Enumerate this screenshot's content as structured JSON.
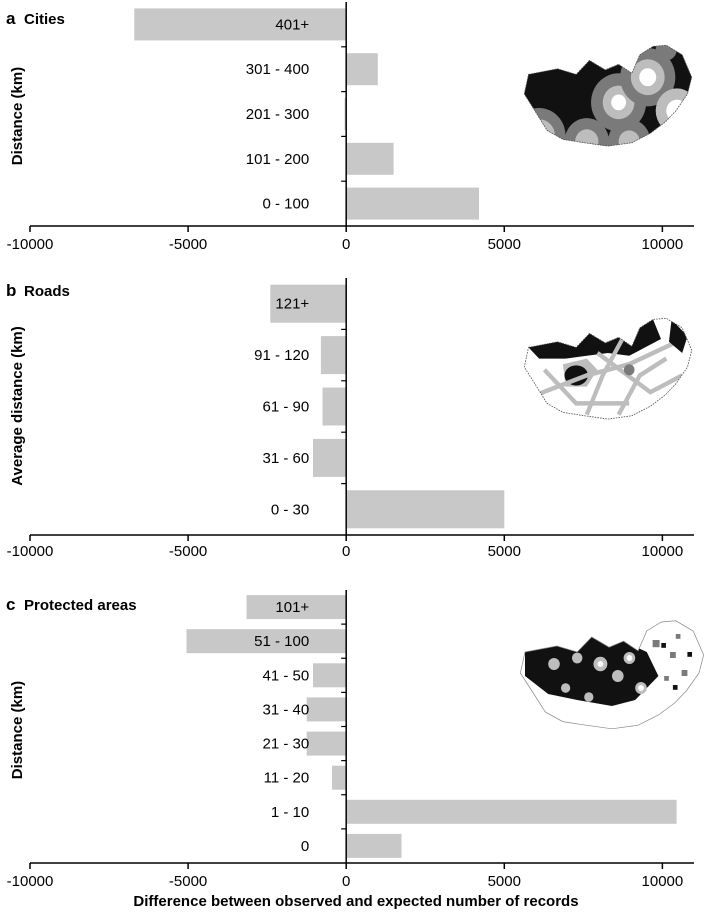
{
  "figure": {
    "xlabel": "Difference between observed and expected number of records",
    "bar_color": "#c8c8c8",
    "map_colors": [
      "#ffffff",
      "#bdbdbd",
      "#7a7a7a",
      "#111111"
    ]
  },
  "chart_data": [
    {
      "type": "bar",
      "orientation": "horizontal",
      "panel": "a",
      "title": "Cities",
      "ylabel": "Distance (km)",
      "categories": [
        "401+",
        "301 - 400",
        "201 - 300",
        "101 - 200",
        "0 - 100"
      ],
      "values": [
        -6700,
        1000,
        -50,
        1500,
        4200
      ],
      "xlim": [
        -10000,
        11000
      ],
      "xticks": [
        -10000,
        -5000,
        0,
        5000,
        10000
      ],
      "xtick_labels": [
        "-10000",
        "-5000",
        "0",
        "5000",
        "10000"
      ],
      "grid": false
    },
    {
      "type": "bar",
      "orientation": "horizontal",
      "panel": "b",
      "title": "Roads",
      "ylabel": "Average distance (km)",
      "categories": [
        "121+",
        "91 - 120",
        "61 - 90",
        "31 - 60",
        "0 - 30"
      ],
      "values": [
        -2400,
        -800,
        -750,
        -1050,
        5000
      ],
      "xlim": [
        -10000,
        11000
      ],
      "xticks": [
        -10000,
        -5000,
        0,
        5000,
        10000
      ],
      "xtick_labels": [
        "-10000",
        "-5000",
        "0",
        "5000",
        "10000"
      ],
      "grid": false
    },
    {
      "type": "bar",
      "orientation": "horizontal",
      "panel": "c",
      "title": "Protected areas",
      "ylabel": "Distance (km)",
      "categories": [
        "101+",
        "51 - 100",
        "41 - 50",
        "31 - 40",
        "21 - 30",
        "11 - 20",
        "1 - 10",
        "0"
      ],
      "values": [
        -3150,
        -5050,
        -1050,
        -1250,
        -1250,
        -450,
        10450,
        1750
      ],
      "xlim": [
        -10000,
        11000
      ],
      "xticks": [
        -10000,
        -5000,
        0,
        5000,
        10000
      ],
      "xtick_labels": [
        "-10000",
        "-5000",
        "0",
        "5000",
        "10000"
      ],
      "grid": false
    }
  ]
}
